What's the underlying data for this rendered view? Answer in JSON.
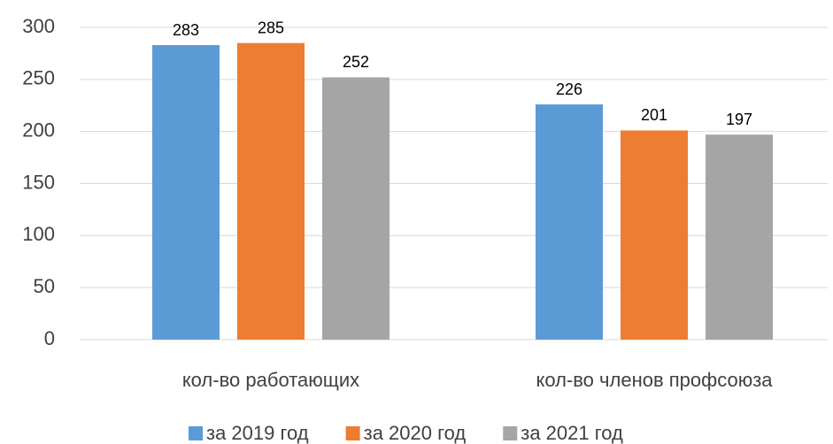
{
  "chart_data": {
    "type": "bar",
    "categories": [
      "кол-во работающих",
      "кол-во членов профсоюза"
    ],
    "series": [
      {
        "name": "за 2019 год",
        "color": "#5b9bd5",
        "values": [
          283,
          226
        ]
      },
      {
        "name": "за 2020 год",
        "color": "#ed7d31",
        "values": [
          285,
          201
        ]
      },
      {
        "name": "за 2021 год",
        "color": "#a5a5a5",
        "values": [
          252,
          197
        ]
      }
    ],
    "ylim": [
      0,
      300
    ],
    "yticks": [
      0,
      50,
      100,
      150,
      200,
      250,
      300
    ],
    "grid": true,
    "legend": "bottom"
  }
}
